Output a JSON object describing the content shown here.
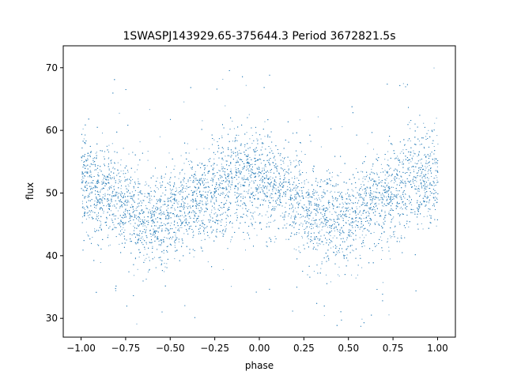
{
  "chart_data": {
    "type": "scatter",
    "title": "1SWASPJ143929.65-375644.3 Period 3672821.5s",
    "xlabel": "phase",
    "ylabel": "flux",
    "xlim": [
      -1.1,
      1.1
    ],
    "ylim": [
      27,
      73.5
    ],
    "xticks": [
      -1.0,
      -0.75,
      -0.5,
      -0.25,
      0.0,
      0.25,
      0.5,
      0.75,
      1.0
    ],
    "xtick_labels": [
      "−1.00",
      "−0.75",
      "−0.50",
      "−0.25",
      "0.00",
      "0.25",
      "0.50",
      "0.75",
      "1.00"
    ],
    "yticks": [
      30,
      40,
      50,
      60,
      70
    ],
    "ytick_labels": [
      "30",
      "40",
      "50",
      "60",
      "70"
    ],
    "grid": false,
    "color": "#1f77b4",
    "series": [
      {
        "description_trend_x": [
          -1.0,
          -0.95,
          -0.9,
          -0.85,
          -0.8,
          -0.75,
          -0.7,
          -0.65,
          -0.6,
          -0.55,
          -0.5,
          -0.45,
          -0.4,
          -0.35,
          -0.3,
          -0.25,
          -0.2,
          -0.15,
          -0.1,
          -0.05,
          0.0,
          0.05,
          0.1,
          0.15,
          0.2,
          0.25,
          0.3,
          0.35,
          0.4,
          0.45,
          0.5,
          0.55,
          0.6,
          0.65,
          0.7,
          0.75,
          0.8,
          0.85,
          0.9,
          0.95,
          1.0
        ],
        "description_trend_y": [
          53,
          51,
          50,
          50,
          49,
          48,
          47,
          46,
          46,
          46,
          46,
          47,
          48,
          49,
          49,
          50,
          51,
          52,
          52,
          52,
          53,
          51,
          50,
          50,
          49,
          48,
          47,
          46,
          46,
          46,
          46,
          47,
          48,
          49,
          49,
          50,
          51,
          52,
          52,
          52,
          53
        ],
        "spread": 5.5
      }
    ]
  }
}
